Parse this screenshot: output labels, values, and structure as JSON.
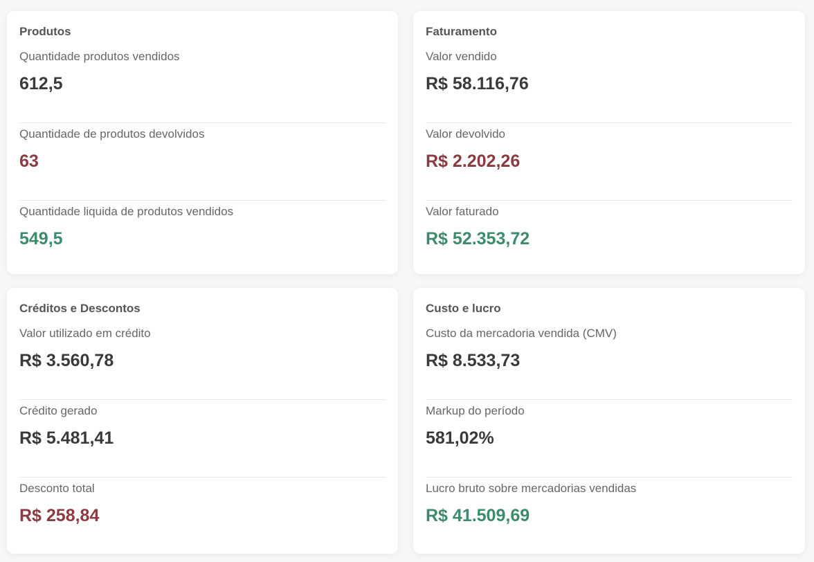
{
  "produtos": {
    "title": "Produtos",
    "metrics": [
      {
        "label": "Quantidade produtos vendidos",
        "value": "612,5",
        "tone": "neutral"
      },
      {
        "label": "Quantidade de produtos devolvidos",
        "value": "63",
        "tone": "negative"
      },
      {
        "label": "Quantidade liquida de produtos vendidos",
        "value": "549,5",
        "tone": "positive"
      }
    ]
  },
  "faturamento": {
    "title": "Faturamento",
    "metrics": [
      {
        "label": "Valor vendido",
        "value": "R$ 58.116,76",
        "tone": "neutral"
      },
      {
        "label": "Valor devolvido",
        "value": "R$ 2.202,26",
        "tone": "negative"
      },
      {
        "label": "Valor faturado",
        "value": "R$ 52.353,72",
        "tone": "positive"
      }
    ]
  },
  "creditos": {
    "title": "Créditos e Descontos",
    "metrics": [
      {
        "label": "Valor utilizado em crédito",
        "value": "R$ 3.560,78",
        "tone": "neutral"
      },
      {
        "label": "Crédito gerado",
        "value": "R$ 5.481,41",
        "tone": "neutral"
      },
      {
        "label": "Desconto total",
        "value": "R$ 258,84",
        "tone": "negative"
      }
    ]
  },
  "custo": {
    "title": "Custo e lucro",
    "metrics": [
      {
        "label": "Custo da mercadoria vendida (CMV)",
        "value": "R$ 8.533,73",
        "tone": "neutral"
      },
      {
        "label": "Markup do período",
        "value": "581,02%",
        "tone": "neutral"
      },
      {
        "label": "Lucro bruto sobre mercadorias vendidas",
        "value": "R$ 41.509,69",
        "tone": "positive"
      }
    ]
  },
  "colors": {
    "neutral": "#3a3a3a",
    "negative": "#8b3a40",
    "positive": "#3d8b6a"
  }
}
